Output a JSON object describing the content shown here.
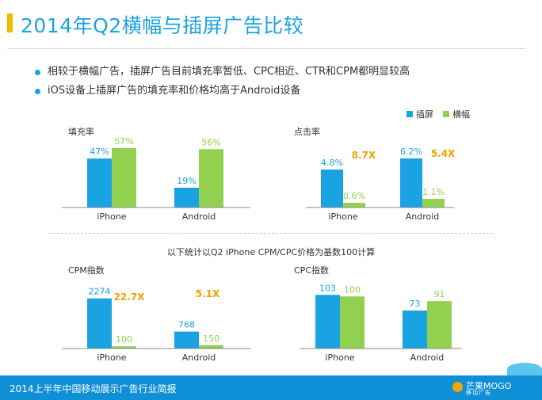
{
  "title": "2014年Q2横幅与插屏广告比较",
  "bullets": [
    "相较于横幅广告，插屏广告目前填充率暂低、CPC相近、CTR和CPM都明显较高",
    "iOS设备上插屏广告的填充率和价格均高于Android设备"
  ],
  "legend": [
    {
      "label": "插屏",
      "color": "#1aa3e3"
    },
    {
      "label": "横幅",
      "color": "#92d050"
    }
  ],
  "note": "以下统计以Q2 iPhone CPM/CPC价格为基数100计算",
  "footer": {
    "text": "2014上半年中国移动展示广告行业简报",
    "logo_name": "芒果MOGO",
    "logo_sub": "移动广告"
  },
  "colors": {
    "interstitial": "#1aa3e3",
    "banner": "#92d050",
    "accent": "#f5a000",
    "title": "#1aa3e3"
  },
  "chart_data": [
    {
      "type": "bar",
      "title": "填充率",
      "categories": [
        "iPhone",
        "Android"
      ],
      "series": [
        {
          "name": "插屏",
          "values": [
            47,
            19
          ],
          "labels": [
            "47%",
            "19%"
          ]
        },
        {
          "name": "横幅",
          "values": [
            57,
            56
          ],
          "labels": [
            "57%",
            "56%"
          ]
        }
      ],
      "ylim": [
        0,
        60
      ],
      "annotations": []
    },
    {
      "type": "bar",
      "title": "点击率",
      "categories": [
        "iPhone",
        "Android"
      ],
      "series": [
        {
          "name": "插屏",
          "values": [
            4.8,
            6.2
          ],
          "labels": [
            "4.8%",
            "6.2%"
          ]
        },
        {
          "name": "横幅",
          "values": [
            0.6,
            1.1
          ],
          "labels": [
            "0.6%",
            "1.1%"
          ]
        }
      ],
      "ylim": [
        0,
        6.5
      ],
      "annotations": [
        "8.7X",
        "5.4X"
      ]
    },
    {
      "type": "bar",
      "title": "CPM指数",
      "categories": [
        "iPhone",
        "Android"
      ],
      "series": [
        {
          "name": "插屏",
          "values": [
            2274,
            768
          ],
          "labels": [
            "2274",
            "768"
          ]
        },
        {
          "name": "横幅",
          "values": [
            100,
            150
          ],
          "labels": [
            "100",
            "150"
          ]
        }
      ],
      "ylim": [
        0,
        2300
      ],
      "annotations": [
        "22.7X",
        "5.1X"
      ]
    },
    {
      "type": "bar",
      "title": "CPC指数",
      "categories": [
        "iPhone",
        "Android"
      ],
      "series": [
        {
          "name": "插屏",
          "values": [
            103,
            73
          ],
          "labels": [
            "103",
            "73"
          ]
        },
        {
          "name": "横幅",
          "values": [
            100,
            91
          ],
          "labels": [
            "100",
            "91"
          ]
        }
      ],
      "ylim": [
        0,
        108
      ],
      "annotations": []
    }
  ]
}
